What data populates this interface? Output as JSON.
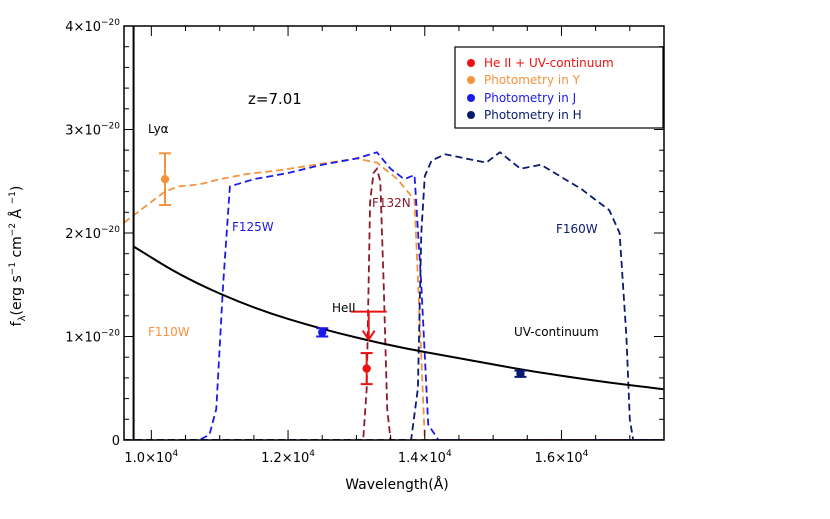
{
  "chart_data": {
    "type": "line",
    "xlabel": "Wavelength(Å)",
    "ylabel": "f",
    "ylabel_sub": "λ",
    "ylabel_rest": "(erg s",
    "ylabel_units": [
      " cm",
      " Å "
    ],
    "xlim": [
      9600,
      17500
    ],
    "ylim": [
      0,
      4e-20
    ],
    "xticks": [
      {
        "value": 10000,
        "mant": "1.0×10",
        "exp": "4"
      },
      {
        "value": 12000,
        "mant": "1.2×10",
        "exp": "4"
      },
      {
        "value": 14000,
        "mant": "1.4×10",
        "exp": "4"
      },
      {
        "value": 16000,
        "mant": "1.6×10",
        "exp": "4"
      }
    ],
    "yticks": [
      {
        "value": 0,
        "label": "0"
      },
      {
        "value": 1e-20,
        "mant": "1×10",
        "exp": "−20"
      },
      {
        "value": 2e-20,
        "mant": "2×10",
        "exp": "−20"
      },
      {
        "value": 3e-20,
        "mant": "3×10",
        "exp": "−20"
      },
      {
        "value": 4e-20,
        "mant": "4×10",
        "exp": "−20"
      }
    ],
    "annotations": {
      "redshift": "z=7.01",
      "lya": "Lyα",
      "heii": "HeII",
      "uv": "UV-continuum",
      "f110w": "F110W",
      "f125w": "F125W",
      "f132n": "F132N",
      "f160w": "F160W"
    },
    "legend": {
      "placement": "top-right",
      "items": [
        {
          "label": "He II + UV-continuum",
          "color": "#ee1111"
        },
        {
          "label": "Photometry in Y",
          "color": "#f5923e"
        },
        {
          "label": "Photometry in J",
          "color": "#1a1aee"
        },
        {
          "label": "Photometry in H",
          "color": "#0a1a6e"
        }
      ]
    },
    "lya_x": 9740,
    "uv_continuum": {
      "color": "#000000",
      "x": [
        9740,
        10500,
        11500,
        12500,
        13500,
        14500,
        15500,
        16500,
        17500
      ],
      "y": [
        1.87e-20,
        1.56e-20,
        1.27e-20,
        1.07e-20,
        9.1e-21,
        7.9e-21,
        6.7e-21,
        5.7e-21,
        4.9e-21
      ]
    },
    "filters": [
      {
        "name": "F110W",
        "color": "#f5923e",
        "x": [
          9600,
          9800,
          10000,
          10200,
          10400,
          10700,
          11000,
          11400,
          11800,
          12200,
          12600,
          13000,
          13300,
          13600,
          13850,
          13950,
          14000,
          14200,
          14500,
          15000,
          15500,
          16000,
          16500,
          17000,
          17500
        ],
        "y": [
          2.1e-20,
          2.2e-20,
          2.3e-20,
          2.4e-20,
          2.45e-20,
          2.47e-20,
          2.52e-20,
          2.57e-20,
          2.6e-20,
          2.64e-20,
          2.68e-20,
          2.72e-20,
          2.68e-20,
          2.52e-20,
          2.32e-20,
          8e-21,
          0,
          0,
          0,
          0,
          0,
          0,
          0,
          0,
          0
        ]
      },
      {
        "name": "F125W",
        "color": "#1a1aee",
        "x": [
          9600,
          10700,
          10850,
          10950,
          11050,
          11150,
          11500,
          12000,
          12500,
          13000,
          13300,
          13500,
          13700,
          13850,
          13950,
          14050,
          14200,
          15000,
          17500
        ],
        "y": [
          0,
          0,
          5e-22,
          3e-21,
          1.5e-20,
          2.45e-20,
          2.52e-20,
          2.58e-20,
          2.66e-20,
          2.72e-20,
          2.78e-20,
          2.62e-20,
          2.52e-20,
          2.56e-20,
          1.5e-20,
          1.5e-21,
          0,
          0,
          0
        ]
      },
      {
        "name": "F132N",
        "color": "#8b1a2b",
        "x": [
          9600,
          13100,
          13150,
          13200,
          13250,
          13300,
          13350,
          13400,
          13450,
          13500,
          17500
        ],
        "y": [
          0,
          0,
          5e-21,
          2.3e-20,
          2.58e-20,
          2.62e-20,
          2.5e-20,
          1.5e-20,
          3e-21,
          0,
          0
        ]
      },
      {
        "name": "F160W",
        "color": "#0a1a6e",
        "x": [
          9600,
          13800,
          13900,
          13950,
          14000,
          14100,
          14300,
          14600,
          14900,
          15100,
          15400,
          15700,
          16000,
          16300,
          16500,
          16700,
          16850,
          16950,
          17000,
          17050,
          17500
        ],
        "y": [
          0,
          0,
          5e-21,
          2e-20,
          2.55e-20,
          2.7e-20,
          2.76e-20,
          2.72e-20,
          2.68e-20,
          2.78e-20,
          2.62e-20,
          2.66e-20,
          2.54e-20,
          2.42e-20,
          2.32e-20,
          2.22e-20,
          2e-20,
          1e-20,
          2e-21,
          0,
          0
        ]
      }
    ],
    "points": [
      {
        "name": "He II + UV-continuum",
        "color": "#ee1111",
        "x": 13150,
        "y": 6.9e-21,
        "yerr": [
          1.5e-21,
          1.5e-21
        ]
      },
      {
        "name": "Photometry in Y",
        "color": "#f5923e",
        "x": 10200,
        "y": 2.52e-20,
        "yerr": [
          2.5e-21,
          2.5e-21
        ]
      },
      {
        "name": "Photometry in J",
        "color": "#1a1aee",
        "x": 12500,
        "y": 1.04e-20,
        "yerr": [
          4e-22,
          4e-22
        ]
      },
      {
        "name": "Photometry in H",
        "color": "#0a1a6e",
        "x": 15400,
        "y": 6.4e-21,
        "yerr": [
          3e-22,
          3e-22
        ]
      }
    ],
    "upper_limit": {
      "color": "#ee1111",
      "x": 13180,
      "y": 1.24e-20,
      "arrow_to": 9.7e-21
    }
  }
}
